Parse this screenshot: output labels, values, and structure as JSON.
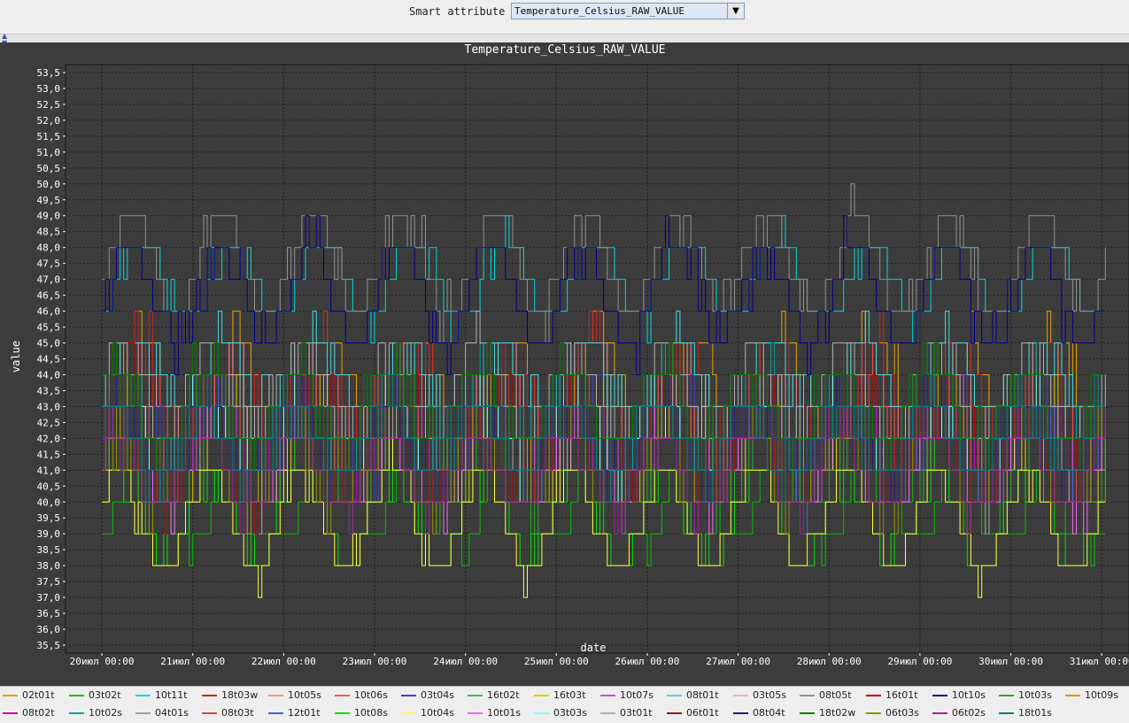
{
  "toolbar": {
    "label": "Smart attribute",
    "selected": "Temperature_Celsius_RAW_VALUE"
  },
  "chart_data": {
    "type": "line",
    "title": "Temperature_Celsius_RAW_VALUE",
    "xlabel": "date",
    "ylabel": "value",
    "ylim": [
      35.25,
      53.75
    ],
    "yticks": [
      53.5,
      53.0,
      52.5,
      52.0,
      51.5,
      51.0,
      50.5,
      50.0,
      49.5,
      49.0,
      48.5,
      48.0,
      47.5,
      47.0,
      46.5,
      46.0,
      45.5,
      45.0,
      44.5,
      44.0,
      43.5,
      43.0,
      42.5,
      42.0,
      41.5,
      41.0,
      40.5,
      40.0,
      39.5,
      39.0,
      38.5,
      38.0,
      37.5,
      37.0,
      36.5,
      36.0,
      35.5
    ],
    "ytick_labels": [
      "53,5",
      "53,0",
      "52,5",
      "52,0",
      "51,5",
      "51,0",
      "50,5",
      "50,0",
      "49,5",
      "49,0",
      "48,5",
      "48,0",
      "47,5",
      "47,0",
      "46,5",
      "46,0",
      "45,5",
      "45,0",
      "44,5",
      "44,0",
      "43,5",
      "43,0",
      "42,5",
      "42,0",
      "41,5",
      "41,0",
      "40,5",
      "40,0",
      "39,5",
      "39,0",
      "38,5",
      "38,0",
      "37,5",
      "37,0",
      "36,5",
      "36,0",
      "35,5"
    ],
    "x_tick_labels": [
      "20июл 00:00",
      "21июл 00:00",
      "22июл 00:00",
      "23июл 00:00",
      "24июл 00:00",
      "25июл 00:00",
      "26июл 00:00",
      "27июл 00:00",
      "28июл 00:00",
      "29июл 00:00",
      "30июл 00:00",
      "31июл 00:00"
    ],
    "x_days": [
      20,
      21,
      22,
      23,
      24,
      25,
      26,
      27,
      28,
      29,
      30,
      31
    ],
    "xlim": [
      19.6,
      31.3
    ],
    "grid": true,
    "legend": "bottom",
    "series": [
      {
        "name": "02t01t",
        "color": "#e8a000",
        "base": 44,
        "amp": 1.5,
        "noise": 1.0
      },
      {
        "name": "03t02t",
        "color": "#00c000",
        "base": 40,
        "amp": 1.4,
        "noise": 0.5
      },
      {
        "name": "10t11t",
        "color": "#00d8d8",
        "base": 47,
        "amp": 1.2,
        "noise": 0.6
      },
      {
        "name": "18t03w",
        "color": "#d02020",
        "base": 43.5,
        "amp": 1.5,
        "noise": 1.2
      },
      {
        "name": "10t05s",
        "color": "#ff9090",
        "base": 43,
        "amp": 1.2,
        "noise": 1.0
      },
      {
        "name": "10t06s",
        "color": "#ff5050",
        "base": 43,
        "amp": 1.2,
        "noise": 1.0
      },
      {
        "name": "03t04s",
        "color": "#4040d0",
        "base": 42,
        "amp": 1.4,
        "noise": 1.2
      },
      {
        "name": "16t02t",
        "color": "#40c040",
        "base": 42,
        "amp": 1.2,
        "noise": 1.0
      },
      {
        "name": "16t03t",
        "color": "#e0d000",
        "base": 42,
        "amp": 1.5,
        "noise": 1.0
      },
      {
        "name": "10t07s",
        "color": "#e040e0",
        "base": 42,
        "amp": 1.3,
        "noise": 1.0
      },
      {
        "name": "08t01t",
        "color": "#40e0e0",
        "base": 44,
        "amp": 1.0,
        "noise": 1.0
      },
      {
        "name": "03t05s",
        "color": "#ffb0b0",
        "base": 42,
        "amp": 1.2,
        "noise": 1.0
      },
      {
        "name": "08t05t",
        "color": "#909090",
        "base": 47.5,
        "amp": 1.5,
        "noise": 0.8
      },
      {
        "name": "16t01t",
        "color": "#c00000",
        "base": 42.5,
        "amp": 1.3,
        "noise": 1.0
      },
      {
        "name": "10t10s",
        "color": "#000090",
        "base": 46.5,
        "amp": 1.5,
        "noise": 1.0
      },
      {
        "name": "10t03s",
        "color": "#20b020",
        "base": 41,
        "amp": 1.3,
        "noise": 1.0
      },
      {
        "name": "10t09s",
        "color": "#c8a000",
        "base": 42,
        "amp": 1.2,
        "noise": 1.0
      },
      {
        "name": "08t02t",
        "color": "#c000c0",
        "base": 42,
        "amp": 1.2,
        "noise": 1.0
      },
      {
        "name": "10t02s",
        "color": "#00a0a0",
        "base": 43,
        "amp": 1.2,
        "noise": 1.0
      },
      {
        "name": "04t01s",
        "color": "#a0a0a0",
        "base": 41.5,
        "amp": 1.2,
        "noise": 1.0
      },
      {
        "name": "08t03t",
        "color": "#e04040",
        "base": 42.5,
        "amp": 1.3,
        "noise": 1.0
      },
      {
        "name": "12t01t",
        "color": "#4060e0",
        "base": 41.5,
        "amp": 1.2,
        "noise": 1.0
      },
      {
        "name": "10t08s",
        "color": "#00e000",
        "base": 39.5,
        "amp": 1.4,
        "noise": 0.5
      },
      {
        "name": "10t04s",
        "color": "#ffff40",
        "base": 39.5,
        "amp": 1.5,
        "noise": 0.7
      },
      {
        "name": "10t01s",
        "color": "#ff60ff",
        "base": 41,
        "amp": 1.3,
        "noise": 1.0
      },
      {
        "name": "03t03s",
        "color": "#80ffff",
        "base": 42,
        "amp": 1.2,
        "noise": 1.0
      },
      {
        "name": "03t01t",
        "color": "#b0b0b0",
        "base": 43.5,
        "amp": 1.2,
        "noise": 1.0
      },
      {
        "name": "06t01t",
        "color": "#a01010",
        "base": 41.5,
        "amp": 1.3,
        "noise": 1.0
      },
      {
        "name": "08t04t",
        "color": "#202080",
        "base": 42,
        "amp": 1.3,
        "noise": 1.0
      },
      {
        "name": "18t02w",
        "color": "#008000",
        "base": 43,
        "amp": 1.3,
        "noise": 1.0
      },
      {
        "name": "06t03s",
        "color": "#909000",
        "base": 41,
        "amp": 1.3,
        "noise": 1.0
      },
      {
        "name": "06t02s",
        "color": "#a020a0",
        "base": 41,
        "amp": 1.3,
        "noise": 1.0
      },
      {
        "name": "18t01s",
        "color": "#008080",
        "base": 42,
        "amp": 1.2,
        "noise": 1.0
      }
    ]
  }
}
